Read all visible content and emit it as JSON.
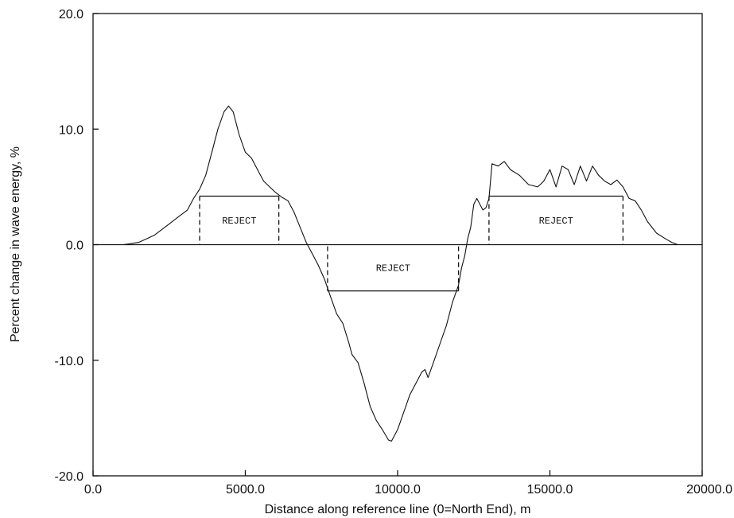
{
  "chart_data": {
    "type": "line",
    "xlabel": "Distance along reference line (0=North End), m",
    "ylabel": "Percent change in wave energy, %",
    "xlim": [
      0,
      20000
    ],
    "ylim": [
      -20,
      20
    ],
    "x_ticks": [
      {
        "value": 0,
        "label": "0.0"
      },
      {
        "value": 5000,
        "label": "5000.0"
      },
      {
        "value": 10000,
        "label": "10000.0"
      },
      {
        "value": 15000,
        "label": "15000.0"
      },
      {
        "value": 20000,
        "label": "20000.0"
      }
    ],
    "y_ticks": [
      {
        "value": 20,
        "label": "20.0"
      },
      {
        "value": 10,
        "label": "10.0"
      },
      {
        "value": 0,
        "label": "0.0"
      },
      {
        "value": -10,
        "label": "-10.0"
      },
      {
        "value": -20,
        "label": "-20.0"
      }
    ],
    "grid": false,
    "series": [
      {
        "x": [
          0,
          1000,
          1500,
          2000,
          2500,
          2800,
          3100,
          3300,
          3500,
          3700,
          3900,
          4100,
          4300,
          4450,
          4600,
          4800,
          5000,
          5200,
          5400,
          5600,
          5800,
          6000,
          6200,
          6400,
          6600,
          6800,
          7000,
          7200,
          7400,
          7600,
          7800,
          8000,
          8200,
          8400,
          8500,
          8700,
          8900,
          9100,
          9300,
          9500,
          9700,
          9800,
          10000,
          10200,
          10400,
          10600,
          10800,
          10900,
          11000,
          11200,
          11400,
          11600,
          11800,
          12000,
          12100,
          12200,
          12300,
          12400,
          12500,
          12600,
          12800,
          12900,
          13000,
          13100,
          13300,
          13500,
          13700,
          14000,
          14300,
          14600,
          14800,
          15000,
          15200,
          15400,
          15600,
          15800,
          16000,
          16200,
          16400,
          16600,
          16800,
          17000,
          17200,
          17400,
          17600,
          17800,
          18000,
          18200,
          18500,
          18800,
          19000,
          19200,
          19500,
          20000
        ],
        "values": [
          0,
          0,
          0.2,
          0.8,
          1.8,
          2.4,
          3.0,
          4.0,
          4.8,
          6.0,
          8.0,
          10.0,
          11.5,
          12.0,
          11.5,
          9.5,
          8.0,
          7.5,
          6.5,
          5.5,
          5.0,
          4.5,
          4.1,
          3.8,
          2.8,
          1.5,
          0.2,
          -0.8,
          -1.8,
          -3.0,
          -4.5,
          -6.0,
          -6.8,
          -8.5,
          -9.5,
          -10.2,
          -12.0,
          -14.0,
          -15.2,
          -16.0,
          -16.9,
          -17.0,
          -16.0,
          -14.5,
          -13.0,
          -12.0,
          -11.0,
          -10.8,
          -11.5,
          -10.0,
          -8.5,
          -7.0,
          -5.0,
          -3.5,
          -2.0,
          -1.0,
          0.5,
          1.5,
          3.5,
          4.0,
          3.0,
          3.2,
          4.0,
          7.0,
          6.8,
          7.2,
          6.5,
          6.0,
          5.2,
          5.0,
          5.5,
          6.5,
          5.0,
          6.8,
          6.5,
          5.2,
          6.8,
          5.5,
          6.8,
          6.0,
          5.5,
          5.2,
          5.6,
          5.0,
          4.0,
          3.8,
          3.0,
          2.0,
          1.0,
          0.5,
          0.2,
          0,
          0,
          0
        ]
      }
    ],
    "annotations": [
      {
        "text": "REJECT",
        "x_start": 3500,
        "x_end": 6100,
        "level": 4.2
      },
      {
        "text": "REJECT",
        "x_start": 7700,
        "x_end": 12000,
        "level": -4.0
      },
      {
        "text": "REJECT",
        "x_start": 13000,
        "x_end": 17400,
        "level": 4.2
      }
    ]
  }
}
